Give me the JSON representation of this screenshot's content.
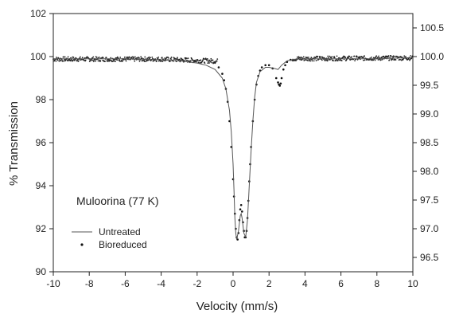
{
  "chart_data": {
    "type": "scatter",
    "title": "",
    "xlabel": "Velocity (mm/s)",
    "ylabel": "% Transmission",
    "xlim": [
      -10,
      10
    ],
    "ylim": [
      90,
      102
    ],
    "y2lim": [
      96.25,
      100.75
    ],
    "xticks": [
      "-10",
      "-8",
      "-6",
      "-4",
      "-2",
      "0",
      "2",
      "4",
      "6",
      "8",
      "10"
    ],
    "yticks": [
      "90",
      "92",
      "94",
      "96",
      "98",
      "100",
      "102"
    ],
    "y2ticks": [
      "96.5",
      "97.0",
      "97.5",
      "98.0",
      "98.5",
      "99.0",
      "99.5",
      "100.0",
      "100.5"
    ],
    "annotation": "Muloorina (77 K)",
    "grid": false,
    "legend_position": "bottom-left",
    "series": [
      {
        "name": "Untreated",
        "style": "line",
        "color": "#555555",
        "x": [
          -10,
          -8,
          -6,
          -4,
          -3,
          -2,
          -1.5,
          -1,
          -0.6,
          -0.4,
          -0.2,
          -0.1,
          0,
          0.05,
          0.1,
          0.15,
          0.2,
          0.3,
          0.4,
          0.45,
          0.5,
          0.6,
          0.7,
          0.8,
          0.9,
          1.0,
          1.1,
          1.2,
          1.3,
          1.5,
          1.8,
          2.0,
          2.3,
          2.5,
          2.7,
          3.0,
          3.5,
          4,
          6,
          8,
          10
        ],
        "y": [
          99.9,
          99.9,
          99.9,
          99.85,
          99.8,
          99.7,
          99.6,
          99.4,
          99.0,
          98.5,
          97.5,
          96.5,
          95.0,
          93.8,
          92.5,
          91.8,
          91.5,
          91.9,
          92.6,
          92.7,
          92.5,
          91.8,
          91.6,
          92.4,
          94.0,
          95.6,
          97.0,
          98.1,
          98.8,
          99.3,
          99.5,
          99.5,
          99.45,
          99.4,
          99.6,
          99.8,
          99.88,
          99.9,
          99.9,
          99.9,
          99.95
        ]
      },
      {
        "name": "Bioreduced",
        "style": "points",
        "color": "#111111",
        "x": [
          -0.8,
          -0.6,
          -0.5,
          -0.4,
          -0.3,
          -0.2,
          -0.1,
          0.0,
          0.05,
          0.1,
          0.15,
          0.2,
          0.25,
          0.3,
          0.35,
          0.4,
          0.45,
          0.5,
          0.55,
          0.6,
          0.65,
          0.7,
          0.75,
          0.8,
          0.85,
          0.9,
          0.95,
          1.0,
          1.1,
          1.2,
          1.3,
          1.4,
          1.5,
          1.6,
          1.8,
          2.0,
          2.2,
          2.4,
          2.5,
          2.55,
          2.6,
          2.65,
          2.7,
          2.8,
          2.9,
          3.0,
          3.2
        ],
        "y": [
          99.5,
          99.2,
          98.9,
          98.5,
          97.9,
          97.0,
          95.8,
          94.3,
          93.5,
          92.7,
          92.0,
          91.6,
          91.5,
          91.8,
          92.4,
          92.9,
          93.1,
          92.8,
          92.3,
          91.9,
          91.6,
          91.6,
          91.9,
          92.5,
          93.3,
          94.2,
          95.0,
          95.8,
          97.0,
          98.0,
          98.7,
          99.1,
          99.35,
          99.5,
          99.6,
          99.6,
          99.45,
          99.0,
          98.8,
          98.7,
          98.65,
          98.75,
          99.0,
          99.4,
          99.6,
          99.75,
          99.85
        ]
      }
    ]
  }
}
